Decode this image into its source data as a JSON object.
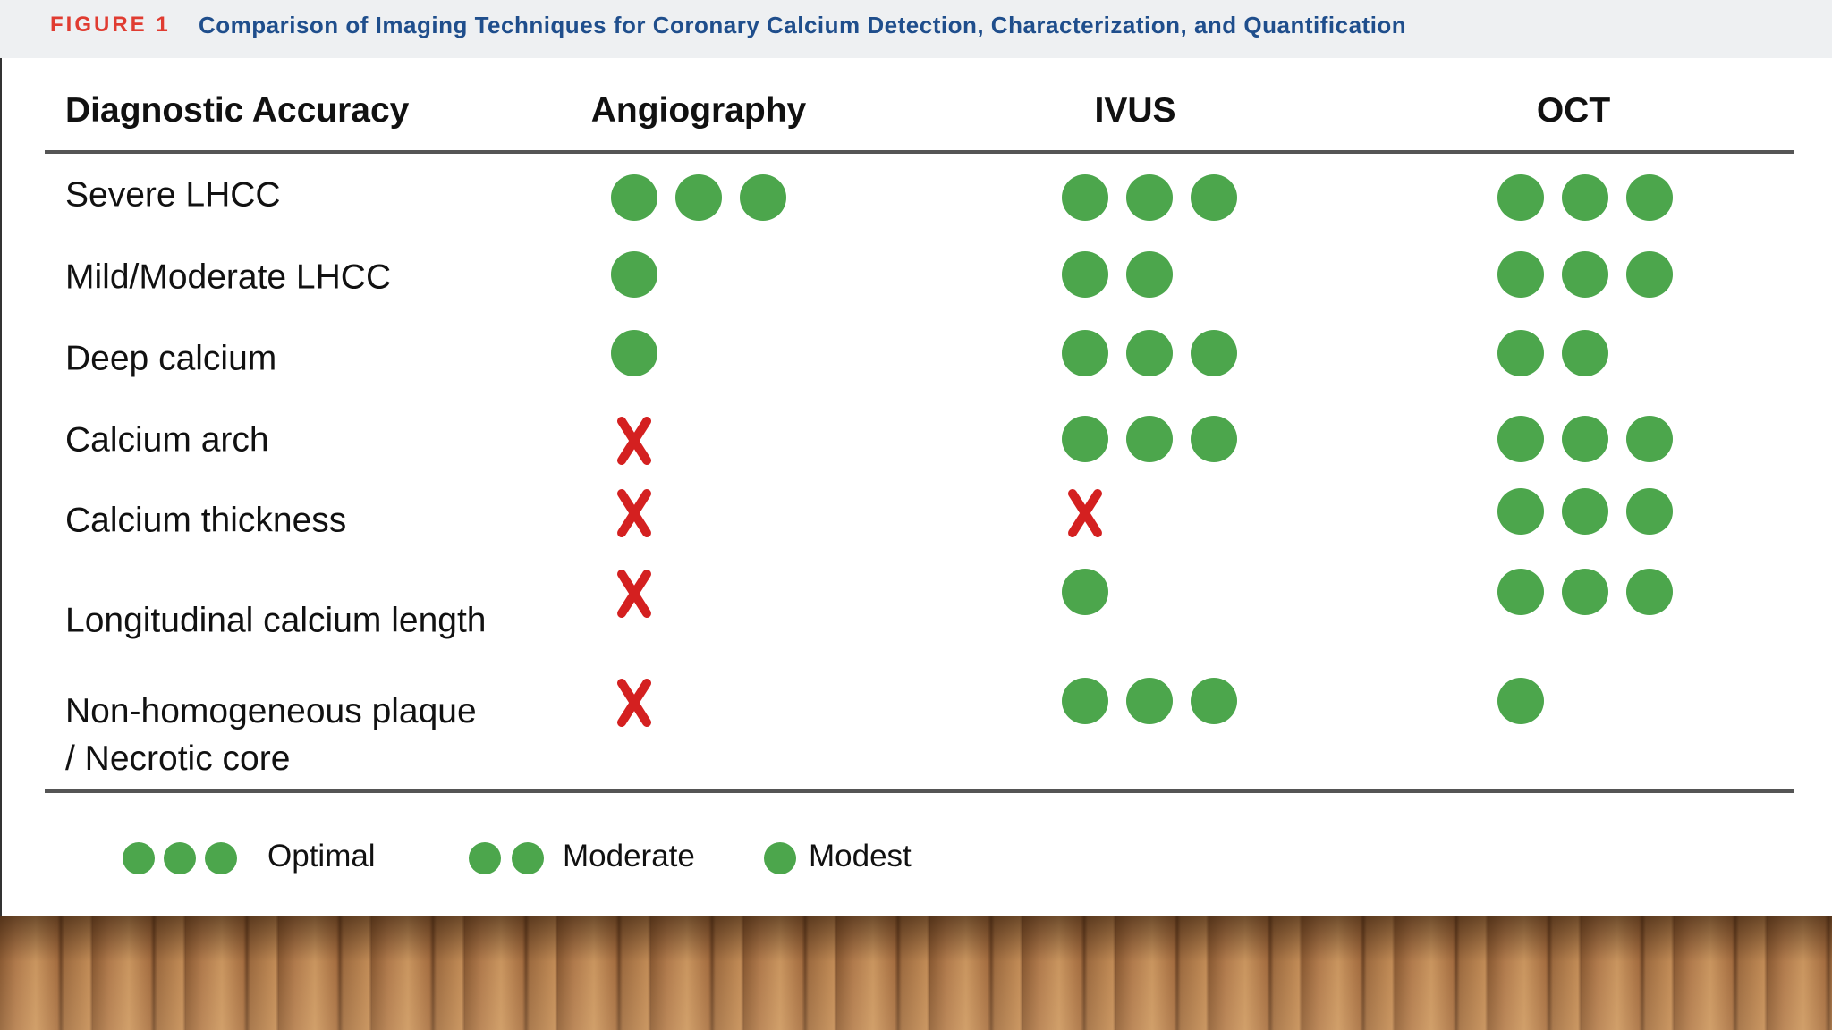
{
  "header": {
    "label": "FIGURE 1",
    "title": "Comparison of Imaging Techniques for Coronary Calcium Detection, Characterization, and Quantification"
  },
  "table": {
    "columns": [
      "Diagnostic Accuracy",
      "Angiography",
      "IVUS",
      "OCT"
    ],
    "rows": [
      {
        "label": "Severe LHCC",
        "ratings": [
          3,
          3,
          3
        ]
      },
      {
        "label": "Mild/Moderate LHCC",
        "ratings": [
          1,
          2,
          3
        ]
      },
      {
        "label": "Deep calcium",
        "ratings": [
          1,
          3,
          2
        ]
      },
      {
        "label": "Calcium arch",
        "ratings": [
          0,
          3,
          3
        ]
      },
      {
        "label": "Calcium thickness",
        "ratings": [
          0,
          0,
          3
        ]
      },
      {
        "label": "Longitudinal calcium length",
        "ratings": [
          0,
          1,
          3
        ]
      },
      {
        "label": "Non-homogeneous plaque / Necrotic core",
        "ratings": [
          0,
          3,
          1
        ]
      }
    ]
  },
  "legend": [
    {
      "count": 3,
      "label": "Optimal"
    },
    {
      "count": 2,
      "label": "Moderate"
    },
    {
      "count": 1,
      "label": "Modest"
    }
  ]
}
